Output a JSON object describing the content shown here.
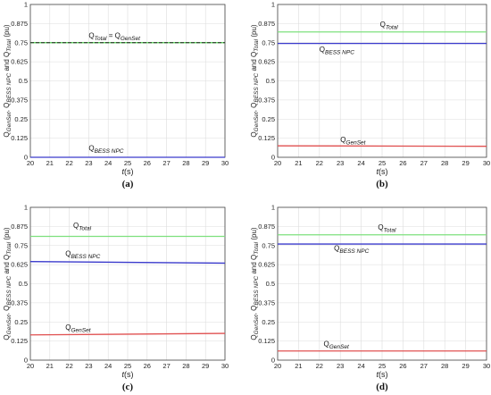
{
  "chart_data": [
    {
      "type": "line",
      "caption": "(a)",
      "xlabel": "t(s)",
      "ylabel": "Q_GenSet, Q_BESS NPC and Q_Total (pu)",
      "xlim": [
        20,
        30
      ],
      "ylim": [
        0,
        1
      ],
      "xticks": [
        "20",
        "21",
        "22",
        "23",
        "24",
        "25",
        "26",
        "27",
        "28",
        "29",
        "30"
      ],
      "yticks": [
        "0",
        "0.125",
        "0.25",
        "0.375",
        "0.5",
        "0.625",
        "0.75",
        "0.875",
        "1"
      ],
      "grid": true,
      "series": [
        {
          "name": "Q_Total",
          "color": "#4fd04f",
          "dash": false,
          "x": [
            20,
            30
          ],
          "y": [
            0.75,
            0.75
          ]
        },
        {
          "name": "Q_GenSet",
          "color": "#222222",
          "dash": true,
          "x": [
            20,
            30
          ],
          "y": [
            0.75,
            0.75
          ]
        },
        {
          "name": "Q_BESS NPC",
          "color": "#3a3acc",
          "dash": false,
          "x": [
            20,
            30
          ],
          "y": [
            0.0,
            0.0
          ]
        }
      ],
      "annotations": [
        {
          "parts": [
            {
              "t": "Q",
              "s": "main"
            },
            {
              "t": "Total",
              "s": "sub"
            },
            {
              "t": "  =  ",
              "s": "main"
            },
            {
              "t": "Q",
              "s": "main"
            },
            {
              "t": "GenSet",
              "s": "sub"
            }
          ],
          "x": 23.0,
          "y": 0.78
        },
        {
          "parts": [
            {
              "t": "Q",
              "s": "main"
            },
            {
              "t": "BESS NPC",
              "s": "sub"
            }
          ],
          "x": 23.0,
          "y": 0.045
        }
      ]
    },
    {
      "type": "line",
      "caption": "(b)",
      "xlabel": "t(s)",
      "ylabel": "Q_GenSet, Q_BESS NPC and Q_Total (pu)",
      "xlim": [
        20,
        30
      ],
      "ylim": [
        0,
        1
      ],
      "xticks": [
        "20",
        "21",
        "22",
        "23",
        "24",
        "25",
        "26",
        "27",
        "28",
        "29",
        "30"
      ],
      "yticks": [
        "0",
        "0.125",
        "0.25",
        "0.375",
        "0.5",
        "0.625",
        "0.75",
        "0.875",
        "1"
      ],
      "grid": true,
      "series": [
        {
          "name": "Q_Total",
          "color": "#7ee07e",
          "dash": false,
          "x": [
            20,
            30
          ],
          "y": [
            0.82,
            0.82
          ]
        },
        {
          "name": "Q_BESS NPC",
          "color": "#3a3acc",
          "dash": false,
          "x": [
            20,
            30
          ],
          "y": [
            0.745,
            0.745
          ]
        },
        {
          "name": "Q_GenSet",
          "color": "#e05050",
          "dash": false,
          "x": [
            20,
            30
          ],
          "y": [
            0.075,
            0.072
          ]
        }
      ],
      "annotations": [
        {
          "parts": [
            {
              "t": "Q",
              "s": "main"
            },
            {
              "t": "Total",
              "s": "sub"
            }
          ],
          "x": 24.9,
          "y": 0.855
        },
        {
          "parts": [
            {
              "t": "Q",
              "s": "main"
            },
            {
              "t": "BESS NPC",
              "s": "sub"
            }
          ],
          "x": 22.0,
          "y": 0.69
        },
        {
          "parts": [
            {
              "t": "Q",
              "s": "main"
            },
            {
              "t": "GenSet",
              "s": "sub"
            }
          ],
          "x": 23.0,
          "y": 0.1
        }
      ]
    },
    {
      "type": "line",
      "caption": "(c)",
      "xlabel": "t(s)",
      "ylabel": "Q_GenSet, Q_BESS NPC and Q_Total (pu)",
      "xlim": [
        20,
        30
      ],
      "ylim": [
        0,
        1
      ],
      "xticks": [
        "20",
        "21",
        "22",
        "23",
        "24",
        "25",
        "26",
        "27",
        "28",
        "29",
        "30"
      ],
      "yticks": [
        "0",
        "0.125",
        "0.25",
        "0.375",
        "0.5",
        "0.625",
        "0.75",
        "0.875",
        "1"
      ],
      "grid": true,
      "series": [
        {
          "name": "Q_Total",
          "color": "#7ee07e",
          "dash": false,
          "x": [
            20,
            30
          ],
          "y": [
            0.81,
            0.81
          ]
        },
        {
          "name": "Q_BESS NPC",
          "color": "#3a3acc",
          "dash": false,
          "x": [
            20,
            30
          ],
          "y": [
            0.645,
            0.635
          ]
        },
        {
          "name": "Q_GenSet",
          "color": "#e05050",
          "dash": false,
          "x": [
            20,
            30
          ],
          "y": [
            0.165,
            0.175
          ]
        }
      ],
      "annotations": [
        {
          "parts": [
            {
              "t": "Q",
              "s": "main"
            },
            {
              "t": "Total",
              "s": "sub"
            }
          ],
          "x": 22.2,
          "y": 0.865
        },
        {
          "parts": [
            {
              "t": "Q",
              "s": "main"
            },
            {
              "t": "BESS NPC",
              "s": "sub"
            }
          ],
          "x": 21.8,
          "y": 0.68
        },
        {
          "parts": [
            {
              "t": "Q",
              "s": "main"
            },
            {
              "t": "GenSet",
              "s": "sub"
            }
          ],
          "x": 21.8,
          "y": 0.2
        }
      ]
    },
    {
      "type": "line",
      "caption": "(d)",
      "xlabel": "t(s)",
      "ylabel": "Q_GenSet, Q_BESS NPC and Q_Total (pu)",
      "xlim": [
        20,
        30
      ],
      "ylim": [
        0,
        1
      ],
      "xticks": [
        "20",
        "21",
        "22",
        "23",
        "24",
        "25",
        "26",
        "27",
        "28",
        "29",
        "30"
      ],
      "yticks": [
        "0",
        "0.125",
        "0.25",
        "0.375",
        "0.5",
        "0.625",
        "0.75",
        "0.875",
        "1"
      ],
      "grid": true,
      "series": [
        {
          "name": "Q_Total",
          "color": "#7ee07e",
          "dash": false,
          "x": [
            20,
            30
          ],
          "y": [
            0.82,
            0.82
          ]
        },
        {
          "name": "Q_BESS NPC",
          "color": "#3a3acc",
          "dash": false,
          "x": [
            20,
            30
          ],
          "y": [
            0.76,
            0.76
          ]
        },
        {
          "name": "Q_GenSet",
          "color": "#e05050",
          "dash": false,
          "x": [
            20,
            30
          ],
          "y": [
            0.06,
            0.06
          ]
        }
      ],
      "annotations": [
        {
          "parts": [
            {
              "t": "Q",
              "s": "main"
            },
            {
              "t": "Total",
              "s": "sub"
            }
          ],
          "x": 24.8,
          "y": 0.855
        },
        {
          "parts": [
            {
              "t": "Q",
              "s": "main"
            },
            {
              "t": "BESS NPC",
              "s": "sub"
            }
          ],
          "x": 22.7,
          "y": 0.715
        },
        {
          "parts": [
            {
              "t": "Q",
              "s": "main"
            },
            {
              "t": "GenSet",
              "s": "sub"
            }
          ],
          "x": 22.2,
          "y": 0.09
        }
      ]
    }
  ]
}
